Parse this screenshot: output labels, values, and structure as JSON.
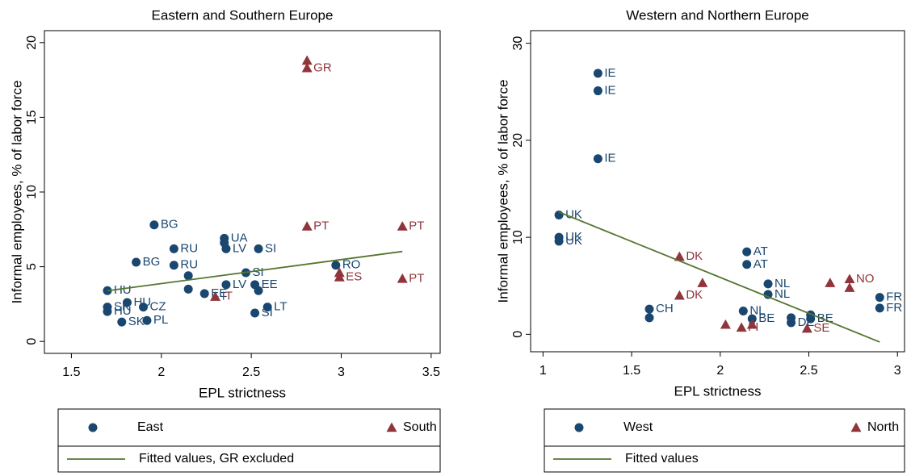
{
  "chart_data": [
    {
      "type": "scatter",
      "title": "Eastern and Southern Europe",
      "x_label": "EPL strictness",
      "y_label": "Informal employees, % of labor force",
      "xlim": [
        1.35,
        3.55
      ],
      "ylim": [
        -0.8,
        20.8
      ],
      "xticks": [
        1.5,
        2,
        2.5,
        3,
        3.5
      ],
      "yticks": [
        0,
        5,
        10,
        15,
        20
      ],
      "series": [
        {
          "name": "East",
          "color": "#1a476f",
          "marker": "circle",
          "x": [
            1.96,
            1.86,
            2.07,
            2.07,
            2.35,
            2.35,
            2.36,
            2.54,
            2.47,
            2.15,
            2.15,
            2.24,
            2.36,
            2.52,
            2.54,
            2.52,
            2.59,
            1.7,
            1.81,
            1.9,
            1.92,
            1.7,
            1.7,
            1.78,
            2.97
          ],
          "values": [
            7.8,
            5.3,
            6.2,
            5.1,
            6.9,
            6.6,
            6.2,
            6.2,
            4.6,
            4.4,
            3.5,
            3.2,
            3.8,
            3.8,
            3.4,
            1.9,
            2.3,
            3.4,
            2.6,
            2.3,
            1.4,
            2.3,
            2.0,
            1.3,
            5.1
          ],
          "labels": [
            "BG",
            "BG",
            "RU",
            "RU",
            "UA",
            null,
            "LV",
            "SI",
            "SI",
            null,
            null,
            "EE",
            "LV",
            "EE",
            null,
            "SI",
            "LT",
            "HU",
            "HU",
            "CZ",
            "PL",
            "SK",
            "HU",
            "SK",
            "RO"
          ]
        },
        {
          "name": "South",
          "color": "#90353b",
          "marker": "triangle",
          "x": [
            2.81,
            2.81,
            2.81,
            3.34,
            3.34,
            2.99,
            2.99,
            2.3
          ],
          "values": [
            18.8,
            18.3,
            7.7,
            7.7,
            4.2,
            4.6,
            4.3,
            3.0
          ],
          "labels": [
            null,
            "GR",
            "PT",
            "PT",
            "PT",
            null,
            "ES",
            "IT"
          ]
        },
        {
          "name": "Fitted values, GR excluded",
          "color": "#55752f",
          "marker": "line",
          "x": [
            1.7,
            3.34
          ],
          "values": [
            3.39,
            6.02
          ]
        }
      ]
    },
    {
      "type": "scatter",
      "title": "Western and Northern Europe",
      "x_label": "EPL strictness",
      "y_label": "Informal employees, % of labor force",
      "xlim": [
        0.93,
        3.04
      ],
      "ylim": [
        -1.8,
        31.3
      ],
      "xticks": [
        1,
        1.5,
        2,
        2.5,
        3
      ],
      "yticks": [
        0,
        10,
        20,
        30
      ],
      "series": [
        {
          "name": "West",
          "color": "#1a476f",
          "marker": "circle",
          "x": [
            1.31,
            1.31,
            1.31,
            1.09,
            1.09,
            1.09,
            2.15,
            2.15,
            2.27,
            2.27,
            2.13,
            1.6,
            1.6,
            2.18,
            2.4,
            2.4,
            2.51,
            2.51,
            2.9,
            2.9
          ],
          "values": [
            26.9,
            25.1,
            18.1,
            12.3,
            10.0,
            9.6,
            8.5,
            7.2,
            5.2,
            4.1,
            2.4,
            2.6,
            1.7,
            1.6,
            1.7,
            1.2,
            2.0,
            1.6,
            3.8,
            2.7
          ],
          "labels": [
            "IE",
            "IE",
            "IE",
            "UK",
            "UK",
            "UK",
            "AT",
            "AT",
            "NL",
            "NL",
            "NL",
            "CH",
            null,
            "BE",
            null,
            "DE",
            null,
            "BE",
            "FR",
            "FR"
          ]
        },
        {
          "name": "North",
          "color": "#90353b",
          "marker": "triangle",
          "x": [
            1.77,
            1.77,
            1.9,
            2.03,
            2.12,
            2.18,
            2.49,
            2.62,
            2.73,
            2.73
          ],
          "values": [
            8.0,
            4.0,
            5.3,
            1.0,
            0.7,
            1.0,
            0.6,
            5.3,
            5.7,
            4.8
          ],
          "labels": [
            "DK",
            "DK",
            null,
            null,
            "FI",
            null,
            "SE",
            null,
            "NO",
            null
          ]
        },
        {
          "name": "Fitted values",
          "color": "#55752f",
          "marker": "line",
          "x": [
            1.09,
            2.9
          ],
          "values": [
            12.6,
            -0.8
          ]
        }
      ]
    }
  ]
}
